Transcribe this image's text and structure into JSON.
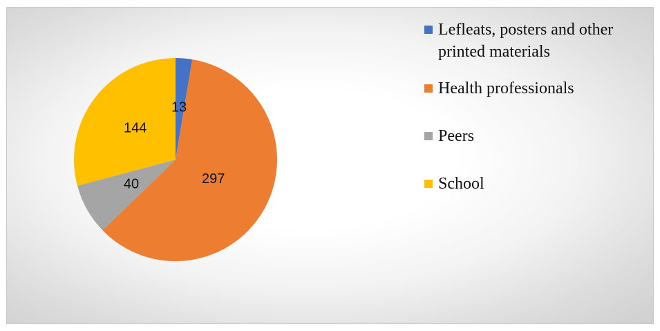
{
  "chart_data": {
    "type": "pie",
    "categories": [
      "Lefleats, posters and other printed materials",
      "Health professionals",
      "Peers",
      "School"
    ],
    "values": [
      13,
      297,
      40,
      144
    ],
    "colors": [
      "#4472c4",
      "#ed7d31",
      "#a5a5a5",
      "#ffc000"
    ],
    "data_labels": [
      "13",
      "297",
      "40",
      "144"
    ],
    "start_angle_deg": 0,
    "direction": "clockwise",
    "legend_position": "right"
  }
}
